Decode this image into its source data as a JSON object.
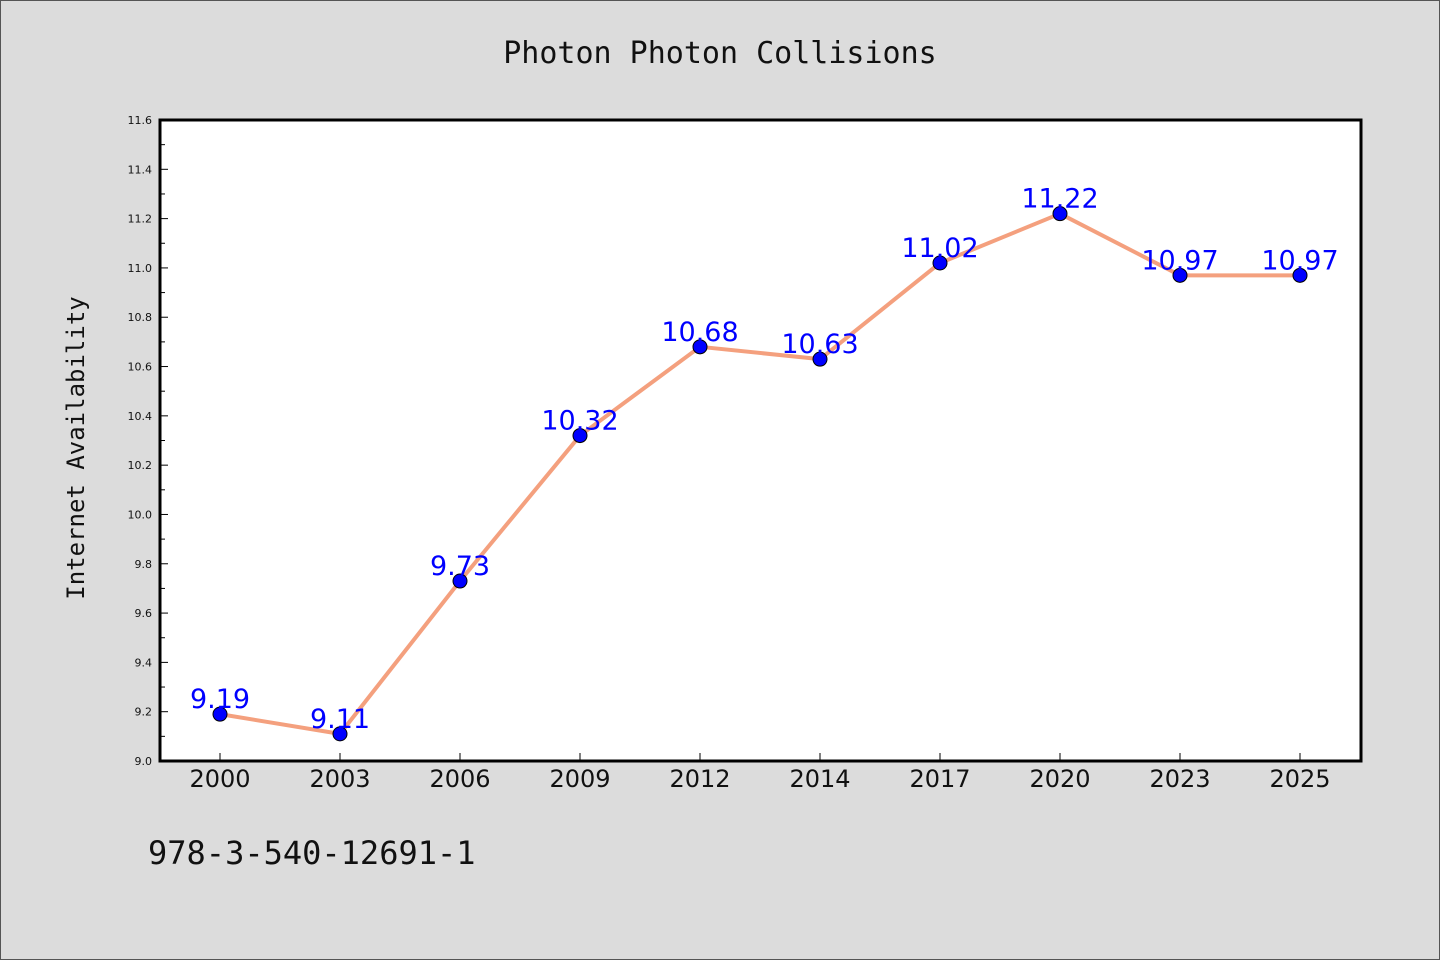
{
  "footer": {
    "isbn": "978-3-540-12691-1"
  },
  "colors": {
    "line": "#f4a07e",
    "marker": "#0000ff",
    "label": "#0000ff",
    "plot_bg": "#ffffff",
    "page_bg": "#dcdcdc"
  },
  "chart_data": {
    "type": "line",
    "title": "Photon Photon Collisions",
    "xlabel": "",
    "ylabel": "Internet Availability",
    "categories": [
      "2000",
      "2003",
      "2006",
      "2009",
      "2012",
      "2014",
      "2017",
      "2020",
      "2023",
      "2025"
    ],
    "series": [
      {
        "values": [
          9.19,
          9.11,
          9.73,
          10.32,
          10.68,
          10.63,
          11.02,
          11.22,
          10.97,
          10.97
        ]
      }
    ],
    "data_labels": [
      "9.19",
      "9.11",
      "9.73",
      "10.32",
      "10.68",
      "10.63",
      "11.02",
      "11.22",
      "10.97",
      "10.97"
    ],
    "ylim": [
      9.0,
      11.6
    ],
    "yticks": [
      "9.0",
      "9.2",
      "9.4",
      "9.6",
      "9.8",
      "10.0",
      "10.2",
      "10.4",
      "10.6",
      "10.8",
      "11.0",
      "11.2",
      "11.4",
      "11.6"
    ],
    "grid": false,
    "legend": "none"
  }
}
